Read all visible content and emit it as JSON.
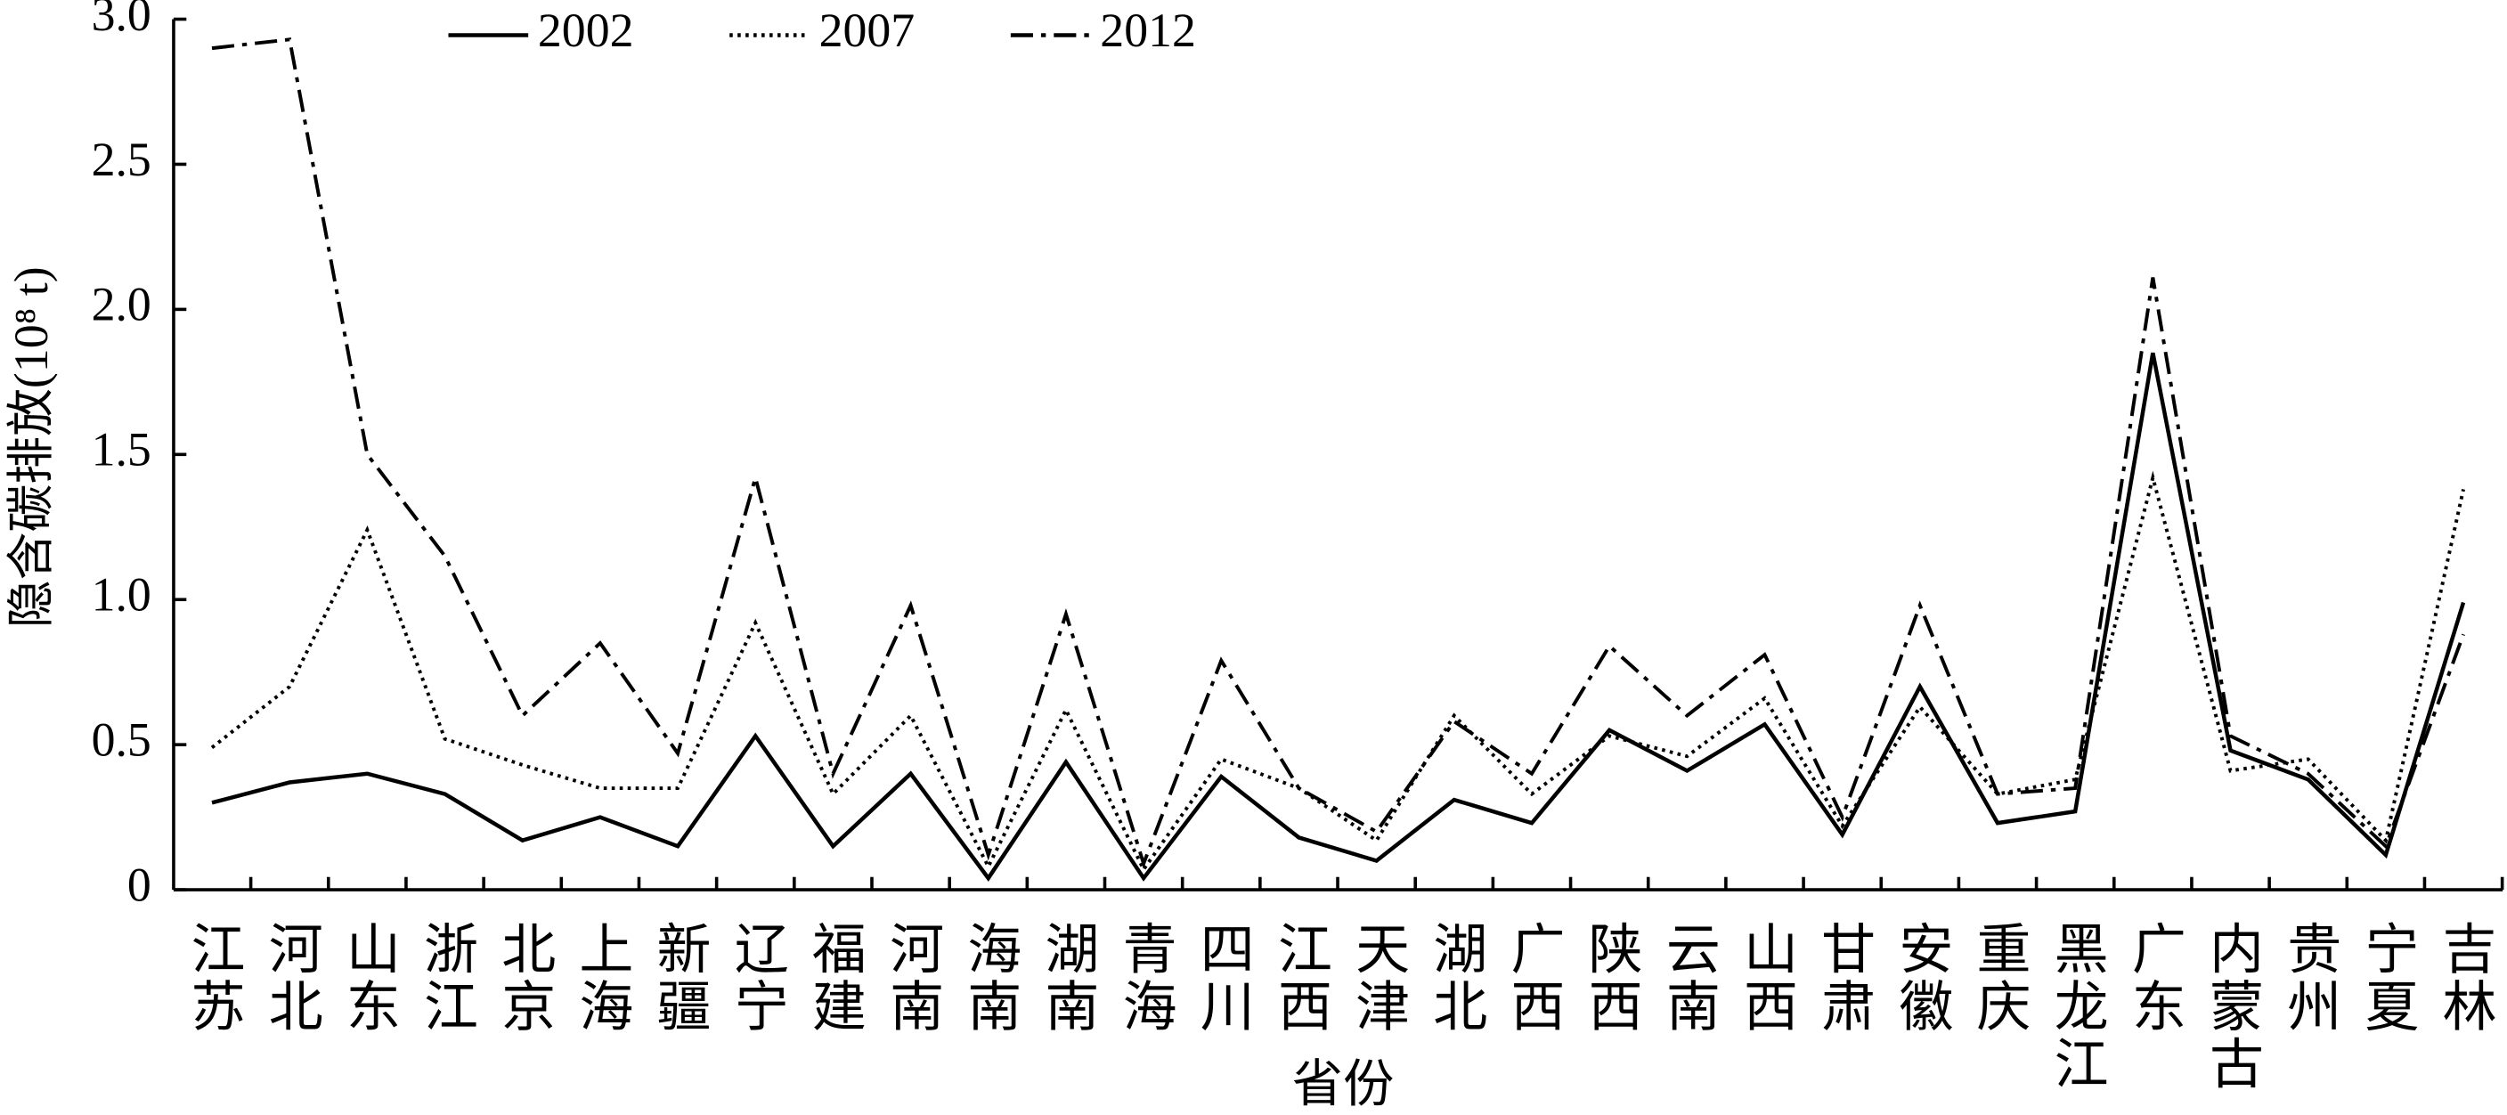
{
  "chart_data": {
    "type": "line",
    "y_label": "隐含碳排放(10⁸ t)",
    "x_label": "省份",
    "categories": [
      "江苏",
      "河北",
      "山东",
      "浙江",
      "北京",
      "上海",
      "新疆",
      "辽宁",
      "福建",
      "河南",
      "海南",
      "湖南",
      "青海",
      "四川",
      "江西",
      "天津",
      "湖北",
      "广西",
      "陕西",
      "云南",
      "山西",
      "甘肃",
      "安徽",
      "重庆",
      "黑龙江",
      "广东",
      "内蒙古",
      "贵州",
      "宁夏",
      "吉林"
    ],
    "series": [
      {
        "name": "2002",
        "color": "#000000",
        "dash": "solid",
        "values": [
          0.3,
          0.37,
          0.4,
          0.33,
          0.17,
          0.25,
          0.15,
          0.53,
          0.15,
          0.4,
          0.04,
          0.44,
          0.04,
          0.39,
          0.18,
          0.1,
          0.31,
          0.23,
          0.55,
          0.41,
          0.57,
          0.19,
          0.7,
          0.23,
          0.27,
          1.85,
          0.48,
          0.38,
          0.12,
          0.99
        ]
      },
      {
        "name": "2007",
        "color": "#000000",
        "dash": "dotted",
        "values": [
          0.49,
          0.7,
          1.24,
          0.52,
          0.43,
          0.35,
          0.35,
          0.92,
          0.33,
          0.6,
          0.08,
          0.62,
          0.07,
          0.45,
          0.35,
          0.17,
          0.6,
          0.33,
          0.53,
          0.46,
          0.66,
          0.22,
          0.63,
          0.33,
          0.38,
          1.42,
          0.41,
          0.45,
          0.17,
          1.38
        ]
      },
      {
        "name": "2012",
        "color": "#000000",
        "dash": "dashdot",
        "values": [
          2.9,
          2.93,
          1.5,
          1.15,
          0.6,
          0.85,
          0.47,
          1.42,
          0.4,
          0.98,
          0.12,
          0.95,
          0.09,
          0.79,
          0.35,
          0.2,
          0.58,
          0.4,
          0.84,
          0.6,
          0.81,
          0.25,
          0.98,
          0.33,
          0.35,
          2.11,
          0.53,
          0.4,
          0.15,
          0.88
        ]
      }
    ],
    "ylim": [
      0,
      3.0
    ],
    "yticks": [
      0,
      0.5,
      {
        "value": 1.0,
        "label": "1.0"
      },
      1.5,
      {
        "value": 2.0,
        "label": "2.0"
      },
      2.5,
      {
        "value": 3.0,
        "label": "3.0"
      }
    ],
    "grid": false,
    "legend": "top"
  }
}
